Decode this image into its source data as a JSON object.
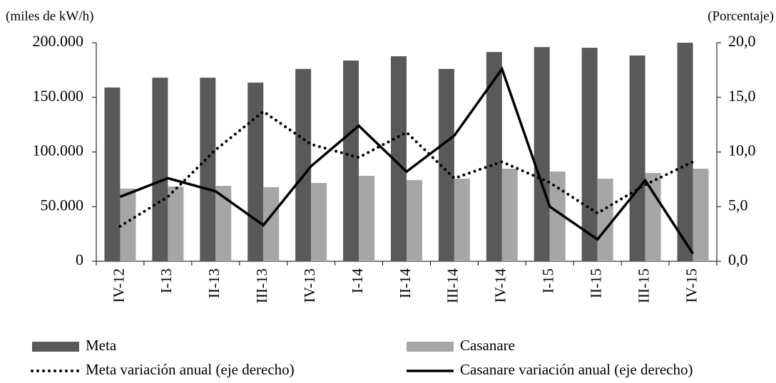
{
  "chart_data": {
    "type": "bar_line",
    "y_label": "(miles de kW/h)",
    "y2_label": "(Porcentaje)",
    "categories": [
      "IV-12",
      "I-13",
      "II-13",
      "III-13",
      "IV-13",
      "I-14",
      "II-14",
      "III-14",
      "IV-14",
      "I-15",
      "II-15",
      "III-15",
      "IV-15"
    ],
    "ylim": [
      0,
      200000
    ],
    "yticks": [
      0,
      {
        "value": 50000,
        "label": "50.000"
      },
      {
        "value": 100000,
        "label": "100.000"
      },
      {
        "value": 150000,
        "label": "150.000"
      },
      {
        "value": 200000,
        "label": "200.000"
      }
    ],
    "y2lim": [
      0,
      20
    ],
    "y2ticks": [
      {
        "value": 0,
        "label": "0,0"
      },
      {
        "value": 5,
        "label": "5,0"
      },
      {
        "value": 10,
        "label": "10,0"
      },
      {
        "value": 15,
        "label": "15,0"
      },
      {
        "value": 20,
        "label": "20,0"
      }
    ],
    "series": [
      {
        "name": "Meta",
        "type": "bar",
        "color": "#595959",
        "values": [
          159000,
          168000,
          168000,
          163500,
          176000,
          183700,
          187600,
          176000,
          191500,
          196000,
          195400,
          188300,
          200000
        ]
      },
      {
        "name": "Casanare",
        "type": "bar",
        "color": "#a6a6a6",
        "values": [
          66500,
          68400,
          69000,
          67800,
          71700,
          78200,
          74300,
          75600,
          84700,
          82100,
          75600,
          80800,
          84700
        ]
      },
      {
        "name": "Meta variación anual (eje derecho)",
        "type": "line",
        "style": "dotted",
        "axis": "y2",
        "color": "#000000",
        "values": [
          3.2,
          5.9,
          10.2,
          13.7,
          10.7,
          9.5,
          11.8,
          7.6,
          9.1,
          7.2,
          4.4,
          7.0,
          9.1
        ]
      },
      {
        "name": "Casanare variación anual (eje derecho)",
        "type": "line",
        "style": "solid",
        "axis": "y2",
        "color": "#000000",
        "values": [
          5.9,
          7.6,
          6.4,
          3.3,
          8.7,
          12.4,
          8.2,
          11.5,
          17.6,
          5.0,
          2.0,
          7.4,
          0.7
        ]
      }
    ]
  }
}
